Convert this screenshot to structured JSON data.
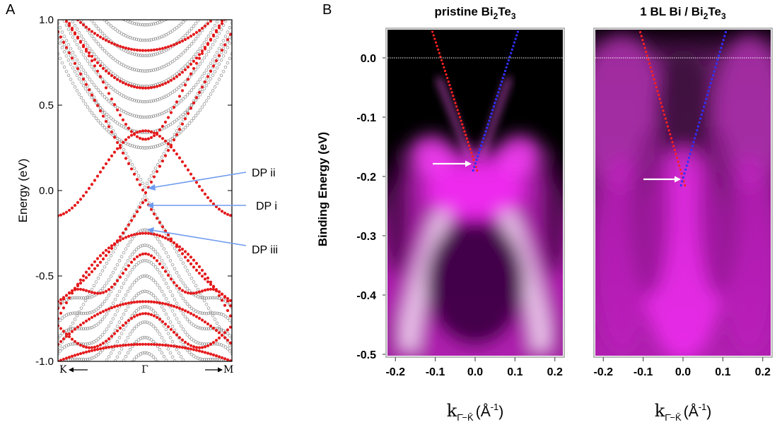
{
  "panel_a": {
    "letter": "A",
    "ylabel": "Energy (eV)",
    "yticks": [
      "1.0",
      "0.5",
      "0.0",
      "-0.5",
      "-1.0"
    ],
    "xlabels": {
      "left": "K",
      "center": "Γ",
      "right": "M"
    },
    "annotations": [
      "DP ii",
      "DP i",
      "DP iii"
    ],
    "colors": {
      "slab_bands": "#e41a1c",
      "bulk_bands": "#8c8c8c",
      "arrows": "#6f9bef"
    }
  },
  "panel_b": {
    "letter": "B",
    "ylabel": "Binding Energy (eV)",
    "yticks": [
      "0.0",
      "-0.1",
      "-0.2",
      "-0.3",
      "-0.4",
      "-0.5"
    ],
    "xticks": [
      "-0.2",
      "-0.1",
      "0.0",
      "0.1",
      "0.2"
    ],
    "xlabel_main": "k",
    "xlabel_sub": "Γ̄−K̄",
    "xlabel_unit": "(Å",
    "xlabel_exp": "-1",
    "xlabel_close": ")",
    "colors": {
      "intensity": "#ff00ff",
      "left_dots": "#ff2020",
      "right_dots": "#3030ff"
    },
    "subpanels": [
      {
        "title_pre": "pristine Bi",
        "title_sub1": "2",
        "title_mid": "Te",
        "title_sub2": "3",
        "dirac_point_eV": -0.18
      },
      {
        "title_pre": "1 BL Bi / Bi",
        "title_sub1": "2",
        "title_mid": "Te",
        "title_sub2": "3",
        "dirac_point_eV": -0.205
      }
    ]
  }
}
